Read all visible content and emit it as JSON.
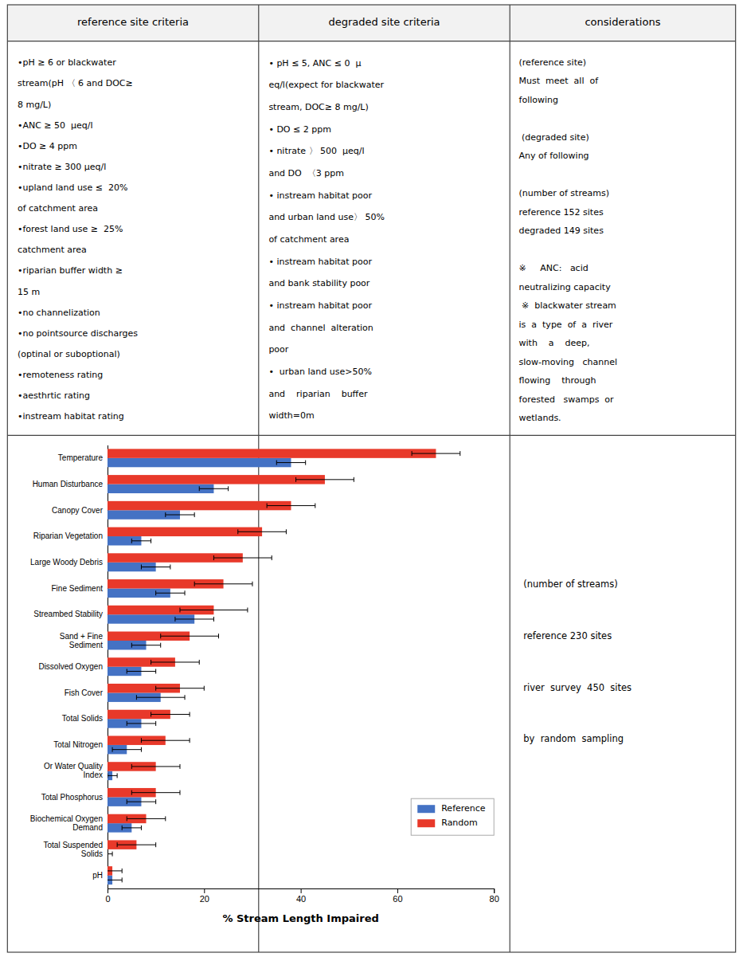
{
  "chart_data": {
    "type": "bar",
    "orientation": "horizontal",
    "categories": [
      "Temperature",
      "Human Disturbance",
      "Canopy Cover",
      "Riparian Vegetation",
      "Large Woody Debris",
      "Fine Sediment",
      "Streambed Stability",
      "Sand + Fine\nSediment",
      "Dissolved Oxygen",
      "Fish Cover",
      "Total Solids",
      "Total Nitrogen",
      "Or Water Quality\nIndex",
      "Total Phosphorus",
      "Biochemical Oxygen\nDemand",
      "Total Suspended\nSolids",
      "pH"
    ],
    "series": [
      {
        "name": "Reference",
        "color": "#4472C4",
        "values": [
          38,
          22,
          15,
          7,
          10,
          13,
          18,
          8,
          7,
          11,
          7,
          4,
          1,
          7,
          5,
          0,
          1
        ],
        "errors": [
          3,
          3,
          3,
          2,
          3,
          3,
          4,
          3,
          3,
          5,
          3,
          3,
          1,
          3,
          2,
          1,
          2
        ]
      },
      {
        "name": "Random",
        "color": "#E8392A",
        "values": [
          68,
          45,
          38,
          32,
          28,
          24,
          22,
          17,
          14,
          15,
          13,
          12,
          10,
          10,
          8,
          6,
          1
        ],
        "errors": [
          5,
          6,
          5,
          5,
          6,
          6,
          7,
          6,
          5,
          5,
          4,
          5,
          5,
          5,
          4,
          4,
          2
        ]
      }
    ],
    "x_label": "% Stream Length Impaired",
    "xlim": [
      0,
      80
    ],
    "xticks": [
      0,
      20,
      40,
      60,
      80
    ],
    "legend": "lower right",
    "grid": false
  },
  "table": {
    "header": [
      "reference site criteria",
      "degraded site criteria",
      "considerations"
    ],
    "columns": [
      [
        [
          "•pH ≥ 6 or blackwater",
          "stream(pH 〈 6 and DOC≥",
          "8 mg/L)",
          "•ANC ≥ 50  μeq/l",
          "•DO ≥ 4 ppm",
          "•nitrate ≥ 300 μeq/l",
          "•upland land use ≤  20%",
          "of catchment area",
          "•forest land use ≥  25%",
          "catchment area",
          "•riparian buffer width ≥",
          "15 m",
          "•no channelization",
          "•no pointsource discharges",
          "(optinal or suboptional)",
          "•remoteness rating",
          "•aesthrtic rating",
          "•instream habitat rating"
        ]
      ],
      [
        [
          "• pH ≤ 5, ANC ≤ 0  μ",
          "eq/l(expect for blackwater",
          "stream, DOC≥ 8 mg/L)",
          "• DO ≤ 2 ppm",
          "• nitrate 〉 500  μeq/l",
          "and DO  〈3 ppm",
          "• instream habitat poor",
          "and urban land use〉 50%",
          "of catchment area",
          "• instream habitat poor",
          "and bank stability poor",
          "• instream habitat poor",
          "and  channel  alteration",
          "poor",
          "•  urban land use>50%",
          "and    riparian    buffer",
          "width=0m"
        ]
      ],
      [
        [
          "(reference site)",
          "Must  meet  all  of",
          "following"
        ],
        [
          " (degraded site)",
          "Any of following"
        ],
        [
          "(number of streams)",
          "reference 152 sites",
          "degraded 149 sites"
        ],
        [
          "※     ANC:   acid",
          "neutralizing capacity",
          " ※  blackwater stream",
          "is  a  type  of  a  river",
          "with    a    deep,",
          "slow-moving   channel",
          "flowing    through",
          "forested   swamps  or",
          "wetlands."
        ]
      ]
    ],
    "notes": [
      "(number of streams)",
      "reference 230 sites",
      "river  survey  450  sites",
      "by  random  sampling"
    ]
  }
}
